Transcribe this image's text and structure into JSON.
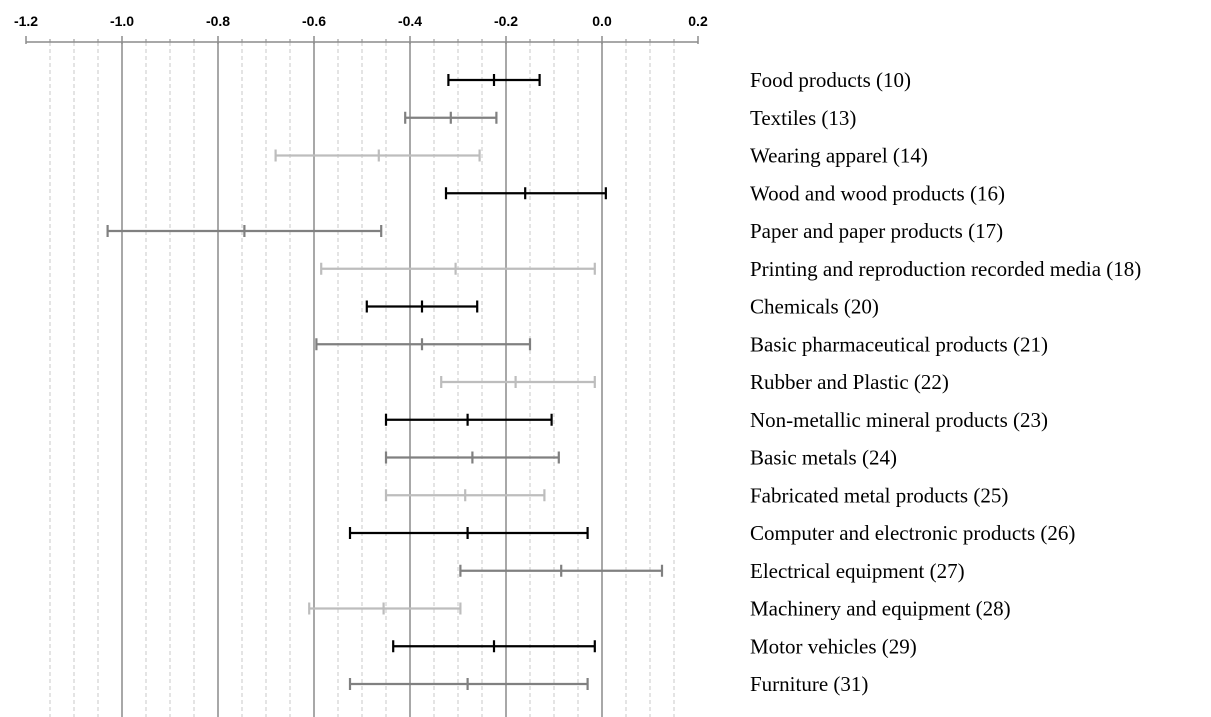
{
  "chart_data": {
    "type": "error_bar",
    "title": "",
    "xlabel": "",
    "ylabel": "",
    "xlim": [
      -1.2,
      0.2
    ],
    "x_ticks": [
      "-1.2",
      "-1.0",
      "-0.8",
      "-0.6",
      "-0.4",
      "-0.2",
      "0.0",
      "0.2"
    ],
    "x_tick_values": [
      -1.2,
      -1.0,
      -0.8,
      -0.6,
      -0.4,
      -0.2,
      0.0,
      0.2
    ],
    "x_axis_position": "top",
    "grid": {
      "major": true,
      "minor": true,
      "minor_style": "dashed"
    },
    "legend": "none",
    "categories": [
      "Food products (10)",
      "Textiles (13)",
      "Wearing apparel (14)",
      "Wood and wood products (16)",
      "Paper and paper products (17)",
      "Printing and reproduction recorded media (18)",
      "Chemicals (20)",
      "Basic pharmaceutical products (21)",
      "Rubber and Plastic (22)",
      "Non-metallic mineral products (23)",
      "Basic metals (24)",
      "Fabricated metal products (25)",
      "Computer and electronic products (26)",
      "Electrical equipment (27)",
      "Machinery and equipment (28)",
      "Motor vehicles (29)",
      "Furniture (31)"
    ],
    "lower": [
      -0.32,
      -0.41,
      -0.68,
      -0.325,
      -1.03,
      -0.585,
      -0.49,
      -0.595,
      -0.335,
      -0.45,
      -0.45,
      -0.45,
      -0.525,
      -0.295,
      -0.61,
      -0.435,
      -0.525
    ],
    "point": [
      -0.225,
      -0.315,
      -0.465,
      -0.16,
      -0.745,
      -0.305,
      -0.375,
      -0.375,
      -0.18,
      -0.28,
      -0.27,
      -0.285,
      -0.28,
      -0.085,
      -0.455,
      -0.225,
      -0.28
    ],
    "upper": [
      -0.13,
      -0.22,
      -0.255,
      0.008,
      -0.46,
      -0.015,
      -0.26,
      -0.15,
      -0.015,
      -0.105,
      -0.09,
      -0.12,
      -0.03,
      0.125,
      -0.295,
      -0.015,
      -0.03
    ],
    "colors": [
      "#000000",
      "#808080",
      "#bdbdbd",
      "#000000",
      "#808080",
      "#bdbdbd",
      "#000000",
      "#808080",
      "#bdbdbd",
      "#000000",
      "#808080",
      "#bdbdbd",
      "#000000",
      "#808080",
      "#bdbdbd",
      "#000000",
      "#808080"
    ]
  }
}
